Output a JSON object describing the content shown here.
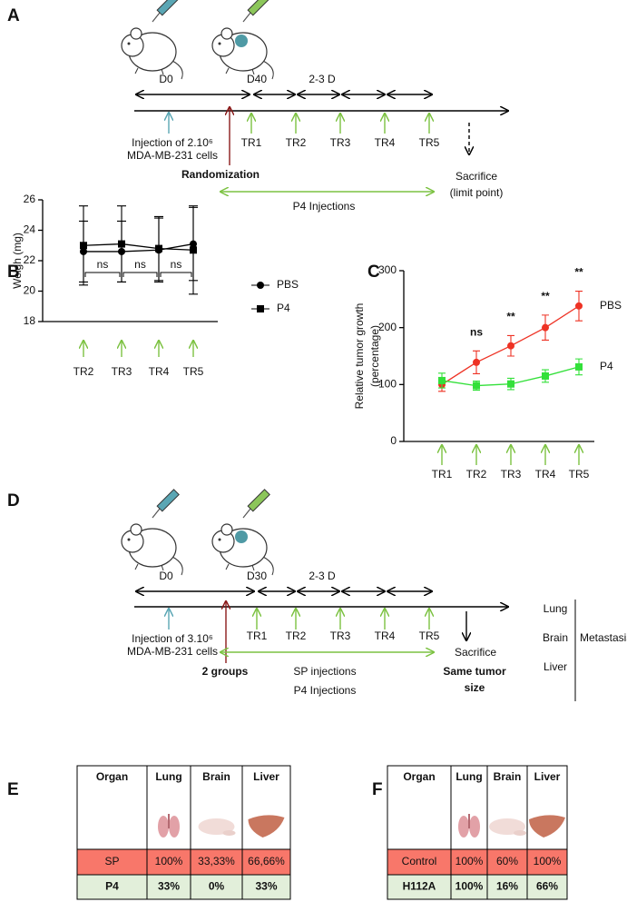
{
  "panel_a": {
    "letter": "A",
    "day_start": "D0",
    "day_treat": "D40",
    "interval": "2-3 D",
    "injection": [
      "Injection of 2.10⁶",
      "MDA-MB-231 cells"
    ],
    "randomization": "Randomization",
    "treatments": [
      "TR1",
      "TR2",
      "TR3",
      "TR4",
      "TR5"
    ],
    "end": [
      "Sacrifice",
      "(limit point)"
    ],
    "treatment_label": "P4 Injections"
  },
  "chart_data": [
    {
      "letter": "B",
      "type": "line",
      "ylabel": [
        "Weigh (mg)"
      ],
      "categories": [
        "TR2",
        "TR3",
        "TR4",
        "TR5"
      ],
      "ylim": [
        18,
        26
      ],
      "yticks": [
        18,
        20,
        22,
        24,
        26
      ],
      "legend": "right",
      "series": [
        {
          "name": "PBS",
          "color": "#000000",
          "marker": "circle",
          "values": [
            22.6,
            22.6,
            22.7,
            23.1
          ],
          "errors": [
            2.0,
            2.0,
            2.1,
            2.4
          ]
        },
        {
          "name": "P4",
          "color": "#000000",
          "marker": "square",
          "values": [
            23.0,
            23.1,
            22.8,
            22.7
          ],
          "errors": [
            2.6,
            2.5,
            2.1,
            2.9
          ]
        }
      ],
      "annotations": [
        "ns",
        "ns",
        "ns"
      ]
    },
    {
      "letter": "C",
      "type": "line",
      "ylabel": [
        "Relative tumor growth",
        "(percentage)"
      ],
      "categories": [
        "TR1",
        "TR2",
        "TR3",
        "TR4",
        "TR5"
      ],
      "ylim": [
        0,
        300
      ],
      "yticks": [
        0,
        100,
        200,
        300
      ],
      "legend": "inline",
      "series": [
        {
          "name": "PBS",
          "color": "#ee3224",
          "marker": "circle",
          "values": [
            100,
            139,
            168,
            200,
            238
          ],
          "errors": [
            12,
            20,
            18,
            22,
            26
          ]
        },
        {
          "name": "P4",
          "color": "#33e03a",
          "marker": "square",
          "values": [
            107,
            98,
            101,
            115,
            131
          ],
          "errors": [
            13,
            8,
            10,
            11,
            14
          ]
        }
      ],
      "annotations": [
        "ns",
        "**",
        "**",
        "**"
      ]
    }
  ],
  "panel_d": {
    "letter": "D",
    "day_start": "D0",
    "day_treat": "D30",
    "interval": "2-3 D",
    "injection": [
      "Injection of 3.10⁶",
      "MDA-MB-231 cells"
    ],
    "groups": "2 groups",
    "treatments": [
      "TR1",
      "TR2",
      "TR3",
      "TR4",
      "TR5"
    ],
    "end": "Sacrifice",
    "end_criterion": [
      "Same tumor",
      "size"
    ],
    "treatment_labels": [
      "SP injections",
      "P4 Injections"
    ],
    "organs": [
      "Lung",
      "Brain",
      "Liver"
    ],
    "outcome": "Metastasis"
  },
  "tables": [
    {
      "letter": "E",
      "header": [
        "Organ",
        "Lung",
        "Brain",
        "Liver"
      ],
      "rows": [
        [
          "SP",
          "100%",
          "33,33%",
          "66,66%"
        ],
        [
          "P4",
          "33%",
          "0%",
          "33%"
        ]
      ]
    },
    {
      "letter": "F",
      "header": [
        "Organ",
        "Lung",
        "Brain",
        "Liver"
      ],
      "rows": [
        [
          "Control",
          "100%",
          "60%",
          "100%"
        ],
        [
          "H112A",
          "100%",
          "16%",
          "66%"
        ]
      ]
    }
  ]
}
